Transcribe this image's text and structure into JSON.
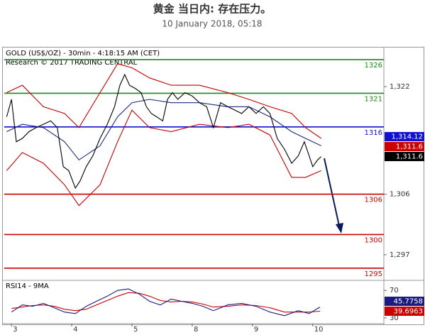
{
  "chart_data": [
    {
      "type": "line",
      "title": "黄金 当日内: 存在压力。",
      "subtitle": "10 January 2018, 05:18",
      "annotations": [
        "GOLD (US$/OZ) - 30min - 4:18:15 AM (CET)",
        "Research © 2017 TRADING CENTRAL"
      ],
      "xlim": [
        -0.12,
        6.18
      ],
      "ylim": [
        1293.4,
        1327.7
      ],
      "yticks": [
        {
          "value": 1322,
          "label": "1,322"
        },
        {
          "value": 1306,
          "label": "1,306"
        },
        {
          "value": 1297,
          "label": "1,297"
        }
      ],
      "levels": [
        {
          "value": 1326,
          "color": "#1a8a1a"
        },
        {
          "value": 1321,
          "color": "#1a8a1a"
        },
        {
          "value": 1316,
          "color": "#1010d0"
        },
        {
          "value": 1306,
          "color": "#cc0000"
        },
        {
          "value": 1300,
          "color": "#cc0000"
        },
        {
          "value": 1295,
          "color": "#cc0000"
        }
      ],
      "price_tags": [
        {
          "value": 1314.12,
          "label": "1,314.12",
          "color": "#1010d0"
        },
        {
          "value": 1311.6,
          "label": "1,311.6",
          "color": "#cc0000"
        },
        {
          "value": 1311.6,
          "label": "1,311.6",
          "color": "#000000"
        }
      ],
      "series": [
        {
          "color": "#c00000",
          "x": [
            -0.08,
            0.18,
            0.53,
            0.88,
            1.12,
            1.47,
            1.76,
            2,
            2.29,
            2.65,
            3.12,
            3.59,
            3.94,
            4.29,
            4.65,
            4.88,
            5.14
          ],
          "values": [
            1321.1,
            1322.2,
            1319.0,
            1318.0,
            1315.9,
            1321.1,
            1325.4,
            1324.8,
            1323.3,
            1322.2,
            1322.2,
            1321.1,
            1320.1,
            1319.0,
            1318.0,
            1315.9,
            1314.3
          ]
        },
        {
          "color": "#c00000",
          "x": [
            -0.08,
            0.18,
            0.53,
            0.88,
            1.12,
            1.47,
            1.76,
            2,
            2.29,
            2.65,
            3.12,
            3.59,
            3.94,
            4.29,
            4.65,
            4.88,
            5.14
          ],
          "values": [
            1309.5,
            1312.2,
            1310.6,
            1307.4,
            1304.3,
            1307.4,
            1313.8,
            1318.5,
            1315.9,
            1315.3,
            1316.4,
            1315.9,
            1316.4,
            1314.8,
            1308.5,
            1308.5,
            1309.5
          ]
        },
        {
          "color": "#1a2a80",
          "x": [
            -0.08,
            0.18,
            0.53,
            0.88,
            1.12,
            1.47,
            1.76,
            2,
            2.29,
            2.65,
            3.12,
            3.59,
            3.94,
            4.29,
            4.65,
            4.88,
            5.14
          ],
          "values": [
            1315.3,
            1316.4,
            1315.9,
            1313.8,
            1311.1,
            1313.2,
            1317.5,
            1319.6,
            1320.1,
            1319.6,
            1319.6,
            1319.0,
            1319.0,
            1317.5,
            1315.3,
            1314.3,
            1313.2
          ]
        },
        {
          "color": "#000000",
          "x": [
            -0.08,
            0,
            0.08,
            0.18,
            0.29,
            0.41,
            0.53,
            0.65,
            0.76,
            0.86,
            0.95,
            1.06,
            1.14,
            1.24,
            1.35,
            1.47,
            1.59,
            1.71,
            1.8,
            1.88,
            1.96,
            2.06,
            2.15,
            2.24,
            2.32,
            2.41,
            2.51,
            2.59,
            2.67,
            2.76,
            2.88,
            3,
            3.12,
            3.24,
            3.35,
            3.47,
            3.59,
            3.71,
            3.82,
            3.94,
            4.06,
            4.18,
            4.29,
            4.41,
            4.53,
            4.65,
            4.76,
            4.86,
            4.94,
            5,
            5.08,
            5.14
          ],
          "values": [
            1317.5,
            1320.1,
            1313.8,
            1314.3,
            1315.3,
            1315.9,
            1316.4,
            1316.9,
            1315.9,
            1310.1,
            1309.5,
            1306.9,
            1308.0,
            1310.1,
            1311.7,
            1314.3,
            1316.4,
            1319.0,
            1322.2,
            1323.8,
            1322.2,
            1321.7,
            1321.1,
            1319.0,
            1318.0,
            1317.5,
            1316.9,
            1320.1,
            1321.1,
            1320.1,
            1321.1,
            1320.6,
            1319.6,
            1319.0,
            1315.9,
            1319.6,
            1319.0,
            1318.5,
            1318.0,
            1319.0,
            1318.0,
            1319.0,
            1318.0,
            1314.3,
            1312.7,
            1310.6,
            1311.7,
            1313.8,
            1311.7,
            1310.1,
            1311.1,
            1311.6
          ]
        }
      ]
    },
    {
      "type": "line",
      "title": "RSI14 - 9MA",
      "xlim": [
        -0.12,
        6.18
      ],
      "xticks": [
        {
          "value": 0,
          "label": "3"
        },
        {
          "value": 1,
          "label": "4"
        },
        {
          "value": 2,
          "label": "5"
        },
        {
          "value": 3,
          "label": "8"
        },
        {
          "value": 4,
          "label": "9"
        },
        {
          "value": 5,
          "label": "10"
        }
      ],
      "ylim": [
        22.6,
        82.6
      ],
      "yticks": [
        70,
        30
      ],
      "price_tags": [
        {
          "value": 45.7758,
          "color": "#1a1a80"
        },
        {
          "value": 39.6963,
          "color": "#cc0000"
        }
      ],
      "series": [
        {
          "color": "#cc0000",
          "x": [
            0,
            0.18,
            0.35,
            0.53,
            0.71,
            0.88,
            1.06,
            1.24,
            1.41,
            1.59,
            1.76,
            1.94,
            2.12,
            2.29,
            2.47,
            2.65,
            2.82,
            3,
            3.18,
            3.35,
            3.59,
            3.82,
            4.06,
            4.29,
            4.53,
            4.76,
            4.94,
            5.12
          ],
          "values": [
            43.7,
            45.8,
            47.9,
            48.9,
            46.8,
            42.6,
            40.5,
            42.6,
            48.9,
            55.3,
            61.6,
            66.8,
            65.8,
            61.6,
            55.3,
            53.2,
            54.2,
            53.2,
            50,
            45.8,
            46.8,
            48.9,
            47.9,
            44.7,
            38.4,
            38.4,
            38.4,
            39.7
          ]
        },
        {
          "color": "#1a1a80",
          "x": [
            0,
            0.18,
            0.35,
            0.53,
            0.71,
            0.88,
            1.06,
            1.24,
            1.41,
            1.59,
            1.76,
            1.94,
            2.12,
            2.29,
            2.47,
            2.65,
            2.82,
            3,
            3.18,
            3.35,
            3.59,
            3.82,
            4.06,
            4.29,
            4.53,
            4.76,
            4.94,
            5.12
          ],
          "values": [
            38.4,
            48.9,
            46.8,
            51.1,
            44.7,
            38.4,
            36.3,
            46.8,
            54.2,
            61.6,
            70,
            72.1,
            64.7,
            54.2,
            48.9,
            57.4,
            54.2,
            51.1,
            46.8,
            40.5,
            48.9,
            51.1,
            46.8,
            38.4,
            33.2,
            40.5,
            36.3,
            45.8
          ]
        }
      ]
    }
  ]
}
